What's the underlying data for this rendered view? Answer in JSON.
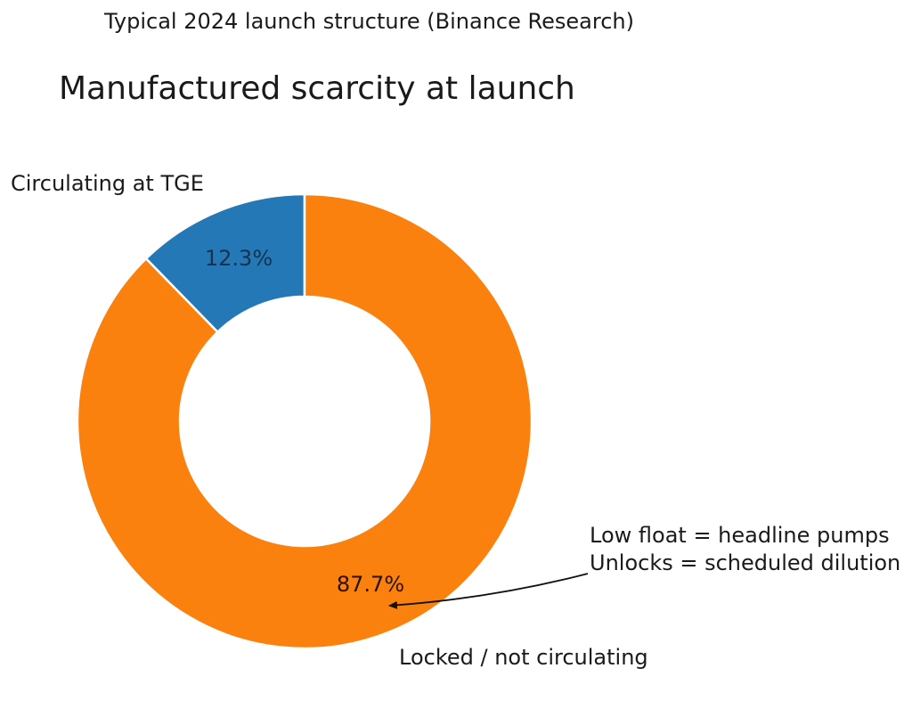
{
  "figure": {
    "background_color": "#ffffff"
  },
  "chart_data": {
    "type": "pie",
    "subtype": "donut",
    "suptitle": "Typical 2024 launch structure (Binance Research)",
    "title": "Manufactured scarcity at launch",
    "labels": [
      "Circulating at TGE",
      "Locked / not circulating"
    ],
    "values": [
      12.3,
      87.7
    ],
    "pct_labels": [
      "12.3%",
      "87.7%"
    ],
    "colors": [
      "#2478b6",
      "#fb810e"
    ],
    "pct_label_colors": [
      "#16324f",
      "#26120b"
    ],
    "slice_ids": [
      "circulating-at-tge",
      "locked-not-circulating"
    ],
    "start_angle": 90,
    "direction": "counterclockwise",
    "donut_hole_ratio": 0.55,
    "wedge_edge_color": "#ffffff",
    "legend": "none",
    "annotation": {
      "line1": "Low float = headline pumps",
      "line2": "Unlocks = scheduled dilution"
    }
  }
}
